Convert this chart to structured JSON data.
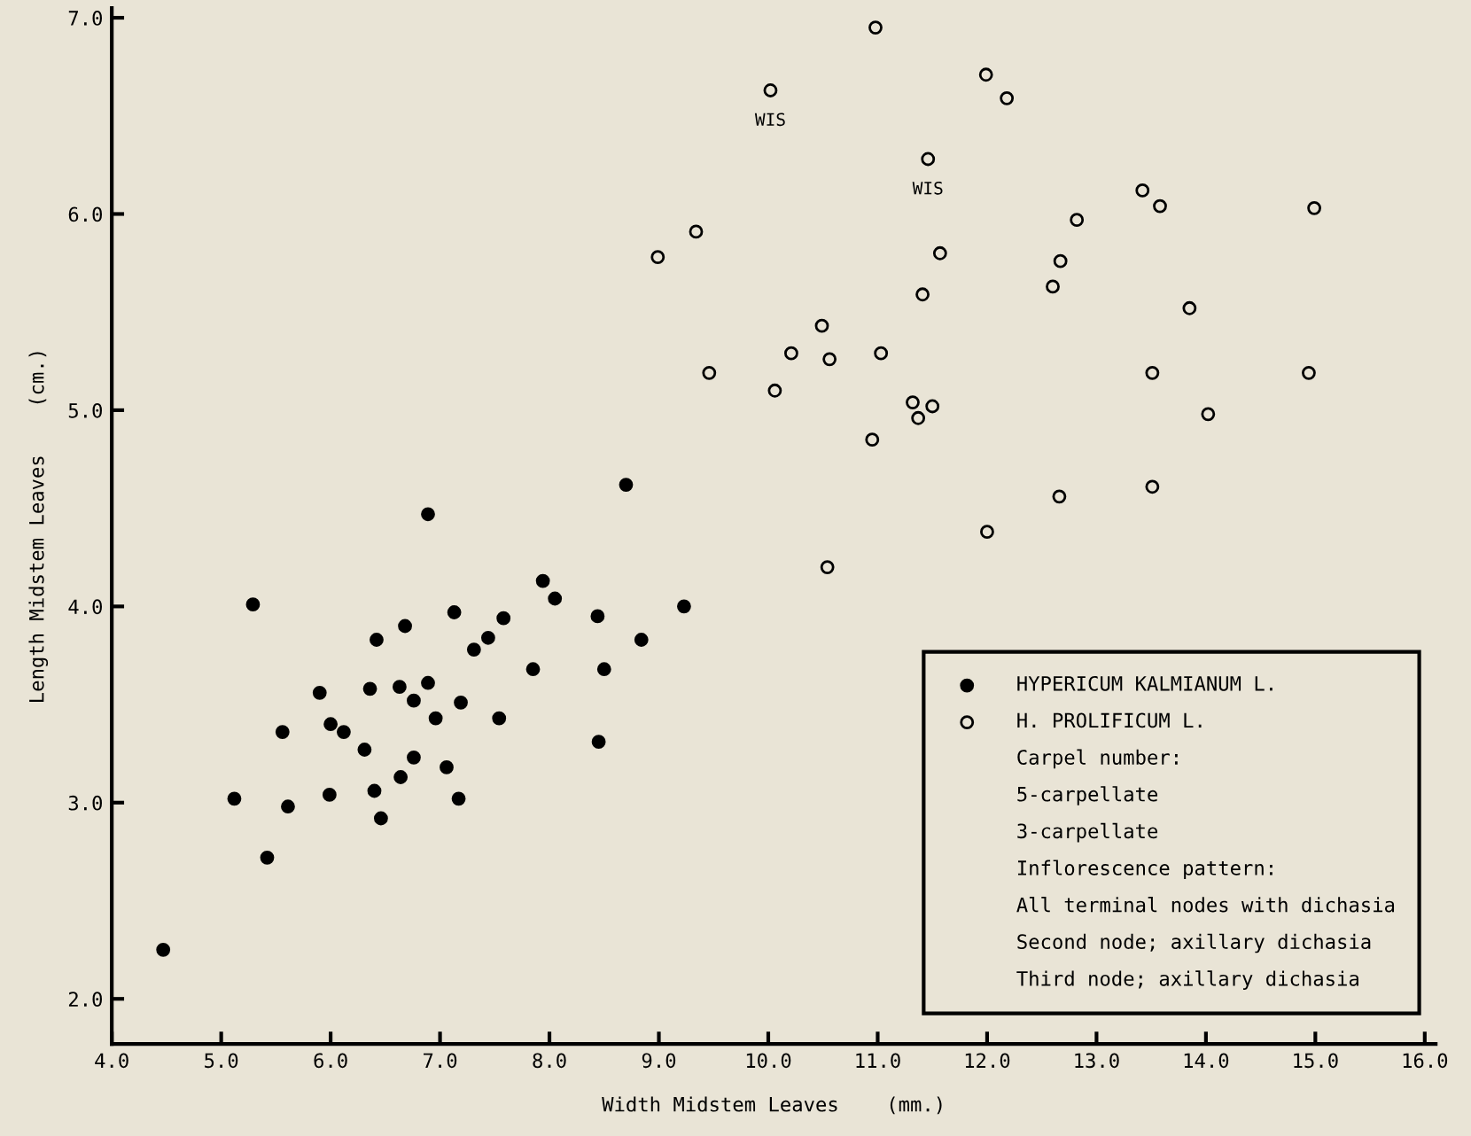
{
  "chart_data": {
    "type": "scatter",
    "xlabel": "Width Midstem Leaves    (mm.)",
    "ylabel": "Length Midstem Leaves    (cm.)",
    "xlim": [
      4.0,
      16.1
    ],
    "ylim": [
      1.77,
      7.05
    ],
    "xticks": [
      {
        "value": 4,
        "label": "4.0"
      },
      {
        "value": 5,
        "label": "5.0"
      },
      {
        "value": 6,
        "label": "6.0"
      },
      {
        "value": 7,
        "label": "7.0"
      },
      {
        "value": 8,
        "label": "8.0"
      },
      {
        "value": 9,
        "label": "9.0"
      },
      {
        "value": 10,
        "label": "10.0"
      },
      {
        "value": 11,
        "label": "11.0"
      },
      {
        "value": 12,
        "label": "12.0"
      },
      {
        "value": 13,
        "label": "13.0"
      },
      {
        "value": 14,
        "label": "14.0"
      },
      {
        "value": 15,
        "label": "15.0"
      },
      {
        "value": 16,
        "label": "16.0"
      }
    ],
    "yticks": [
      {
        "value": 2,
        "label": "2.0"
      },
      {
        "value": 3,
        "label": "3.0"
      },
      {
        "value": 4,
        "label": "4.0"
      },
      {
        "value": 5,
        "label": "5.0"
      },
      {
        "value": 6,
        "label": "6.0"
      },
      {
        "value": 7,
        "label": "7.0"
      }
    ],
    "grid": false,
    "legend": "bottom right",
    "marker": "circle",
    "series": [
      {
        "name": "HYPERICUM KALMIANUM L.",
        "color": "#000000",
        "x": [
          8.7,
          6.89,
          5.29,
          7.94,
          8.05,
          9.23,
          8.44,
          7.13,
          7.58,
          6.68,
          6.42,
          7.44,
          7.31,
          8.84,
          7.85,
          8.5,
          6.89,
          6.63,
          6.36,
          5.9,
          6.76,
          7.19,
          5.56,
          6.0,
          6.12,
          6.96,
          7.54,
          6.31,
          6.76,
          8.45,
          7.06,
          6.64,
          5.12,
          5.61,
          5.99,
          6.4,
          7.17,
          6.46,
          5.42,
          4.47
        ],
        "values": [
          4.62,
          4.47,
          4.01,
          4.13,
          4.04,
          4.0,
          3.95,
          3.97,
          3.94,
          3.9,
          3.83,
          3.84,
          3.78,
          3.83,
          3.68,
          3.68,
          3.61,
          3.59,
          3.58,
          3.56,
          3.52,
          3.51,
          3.36,
          3.4,
          3.36,
          3.43,
          3.43,
          3.27,
          3.23,
          3.31,
          3.18,
          3.13,
          3.02,
          2.98,
          3.04,
          3.06,
          3.02,
          2.92,
          2.72,
          2.25
        ]
      },
      {
        "name": "H. PROLIFICUM L.",
        "color": "#000000",
        "x": [
          10.98,
          10.02,
          11.99,
          12.18,
          11.46,
          9.34,
          8.99,
          13.42,
          13.58,
          14.99,
          12.82,
          11.57,
          12.67,
          12.6,
          11.41,
          13.85,
          10.49,
          10.21,
          10.56,
          11.03,
          9.46,
          10.06,
          13.51,
          14.94,
          11.32,
          11.5,
          11.37,
          14.02,
          10.95,
          12.66,
          13.51,
          12.0,
          10.54
        ],
        "values": [
          6.95,
          6.63,
          6.71,
          6.59,
          6.28,
          5.91,
          5.78,
          6.12,
          6.04,
          6.03,
          5.97,
          5.8,
          5.76,
          5.63,
          5.59,
          5.52,
          5.43,
          5.29,
          5.26,
          5.29,
          5.19,
          5.1,
          5.19,
          5.19,
          5.04,
          5.02,
          4.96,
          4.98,
          4.85,
          4.56,
          4.61,
          4.38,
          4.2
        ]
      }
    ],
    "annotations": [
      {
        "text": "WIS",
        "x": 10.02,
        "y": 6.63
      },
      {
        "text": "WIS",
        "x": 11.46,
        "y": 6.28
      },
      "Carpel number:",
      "5-carpellate",
      "3-carpellate",
      "Inflorescence pattern:",
      "All terminal nodes with dichasia",
      "Second node; axillary dichasia",
      "Third node; axillary dichasia"
    ]
  }
}
